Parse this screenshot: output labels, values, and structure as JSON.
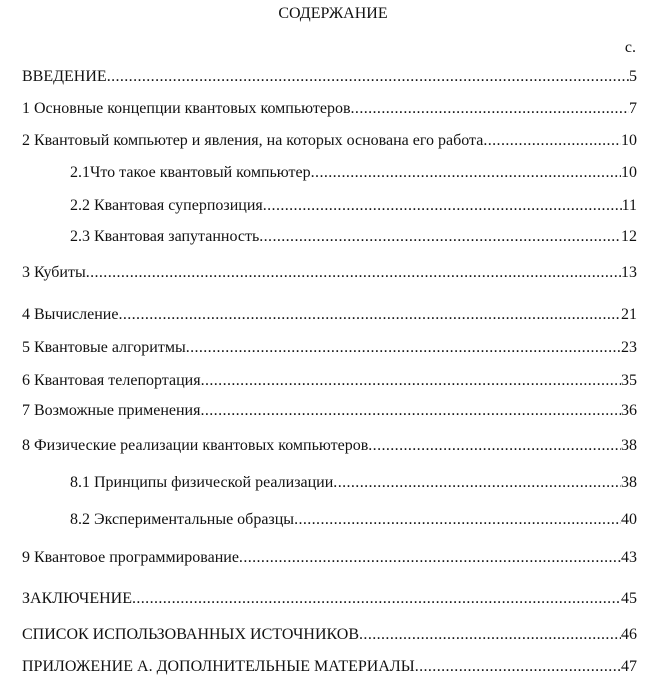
{
  "title": "СОДЕРЖАНИЕ",
  "page_column_label": "с.",
  "entries": [
    {
      "text": "ВВЕДЕНИЕ",
      "page": "5",
      "level": 0
    },
    {
      "text": "1 Основные концепции квантовых компьютеров",
      "page": "7",
      "level": 0
    },
    {
      "text": "2 Квантовый компьютер и явления, на которых основана его работа",
      "page": "10",
      "level": 0
    },
    {
      "text": "2.1Что такое квантовый компьютер",
      "page": "10",
      "level": 1
    },
    {
      "text": "2.2 Квантовая суперпозиция",
      "page": "11",
      "level": 1
    },
    {
      "text": "2.3 Квантовая запутанность",
      "page": "12",
      "level": 1
    },
    {
      "text": "3 Кубиты",
      "page": "13",
      "level": 0
    },
    {
      "text": "4 Вычисление",
      "page": "21",
      "level": 0
    },
    {
      "text": "5 Квантовые алгоритмы",
      "page": "23",
      "level": 0
    },
    {
      "text": "6 Квантовая телепортация",
      "page": "35",
      "level": 0
    },
    {
      "text": "7 Возможные применения",
      "page": "36",
      "level": 0
    },
    {
      "text": "8 Физические реализации квантовых компьютеров",
      "page": "38",
      "level": 0
    },
    {
      "text": "8.1 Принципы физической реализации",
      "page": "38",
      "level": 1
    },
    {
      "text": "8.2 Экспериментальные образцы",
      "page": "40",
      "level": 1
    },
    {
      "text": "9 Квантовое программирование",
      "page": "43",
      "level": 0
    },
    {
      "text": "ЗАКЛЮЧЕНИЕ",
      "page": "45",
      "level": 0
    },
    {
      "text": "СПИСОК ИСПОЛЬЗОВАННЫХ ИСТОЧНИКОВ",
      "page": "46",
      "level": 0
    },
    {
      "text": "ПРИЛОЖЕНИЕ А. ДОПОЛНИТЕЛЬНЫЕ МАТЕРИАЛЫ",
      "page": "47",
      "level": 0
    }
  ]
}
